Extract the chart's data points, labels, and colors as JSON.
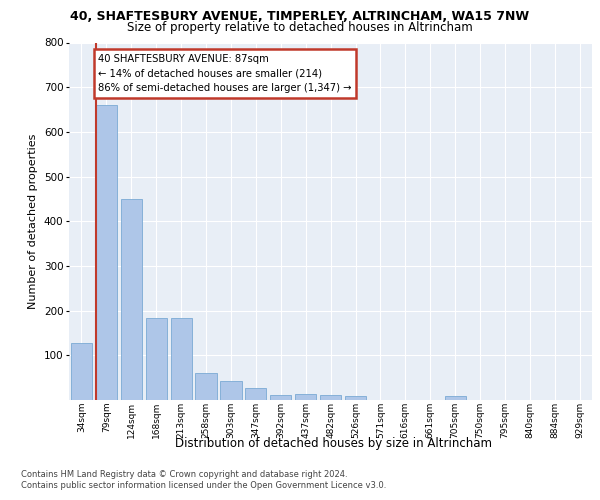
{
  "title1": "40, SHAFTESBURY AVENUE, TIMPERLEY, ALTRINCHAM, WA15 7NW",
  "title2": "Size of property relative to detached houses in Altrincham",
  "xlabel": "Distribution of detached houses by size in Altrincham",
  "ylabel": "Number of detached properties",
  "categories": [
    "34sqm",
    "79sqm",
    "124sqm",
    "168sqm",
    "213sqm",
    "258sqm",
    "303sqm",
    "347sqm",
    "392sqm",
    "437sqm",
    "482sqm",
    "526sqm",
    "571sqm",
    "616sqm",
    "661sqm",
    "705sqm",
    "750sqm",
    "795sqm",
    "840sqm",
    "884sqm",
    "929sqm"
  ],
  "values": [
    128,
    660,
    450,
    183,
    183,
    60,
    43,
    26,
    12,
    13,
    11,
    9,
    0,
    0,
    0,
    9,
    0,
    0,
    0,
    0,
    0
  ],
  "bar_color": "#aec6e8",
  "bar_edgecolor": "#7baad4",
  "highlight_color": "#c0392b",
  "annotation_text": "40 SHAFTESBURY AVENUE: 87sqm\n← 14% of detached houses are smaller (214)\n86% of semi-detached houses are larger (1,347) →",
  "ylim_max": 800,
  "yticks": [
    100,
    200,
    300,
    400,
    500,
    600,
    700,
    800
  ],
  "bg_color": "#e8eef6",
  "grid_color": "#ffffff",
  "footer1": "Contains HM Land Registry data © Crown copyright and database right 2024.",
  "footer2": "Contains public sector information licensed under the Open Government Licence v3.0."
}
